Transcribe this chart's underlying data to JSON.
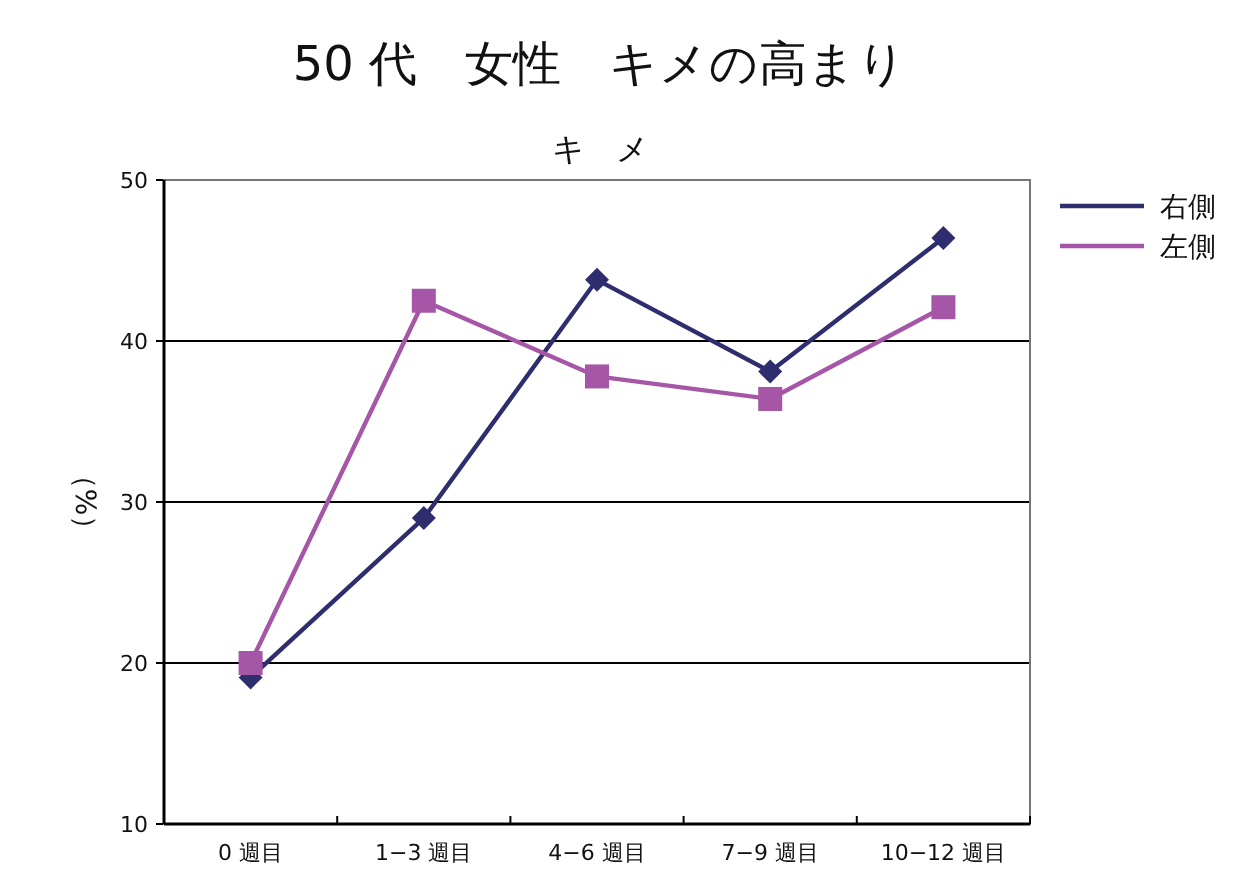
{
  "chart_data": {
    "type": "line",
    "title": "50 代　女性　キメの高まり",
    "subtitle": "キ　メ",
    "ylabel": "（%）",
    "categories": [
      "0 週目",
      "1−3 週目",
      "4−6 週目",
      "7−9 週目",
      "10−12 週目"
    ],
    "series": [
      {
        "name": "右側",
        "color": "#2e2e6e",
        "marker": "diamond",
        "values": [
          19.1,
          29.0,
          43.8,
          38.1,
          46.4
        ]
      },
      {
        "name": "左側",
        "color": "#a656a6",
        "marker": "square",
        "values": [
          20.0,
          42.5,
          37.8,
          36.4,
          42.1
        ]
      }
    ],
    "ylim": [
      10,
      50
    ],
    "yticks": [
      10,
      20,
      30,
      40,
      50
    ],
    "grid": "y",
    "legend": "top right",
    "line_style": "solid"
  }
}
